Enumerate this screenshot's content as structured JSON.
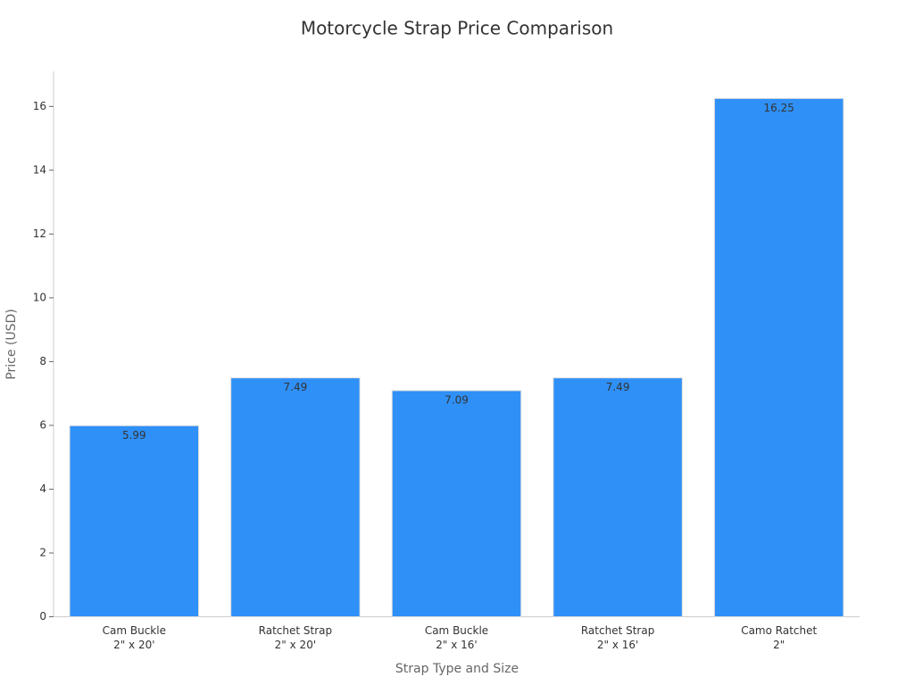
{
  "chart_data": {
    "type": "bar",
    "title": "Motorcycle Strap Price Comparison",
    "x_label": "Strap Type and Size",
    "y_label": "Price (USD)",
    "categories": [
      [
        "Cam Buckle",
        "2\" x 20'"
      ],
      [
        "Ratchet Strap",
        "2\" x 20'"
      ],
      [
        "Cam Buckle",
        "2\" x 16'"
      ],
      [
        "Ratchet Strap",
        "2\" x 16'"
      ],
      [
        "Camo Ratchet",
        "2\""
      ]
    ],
    "values": [
      5.99,
      7.49,
      7.09,
      7.49,
      16.25
    ],
    "color": "#2f90f7",
    "ylim": [
      0,
      17.1
    ],
    "yticks": [
      0,
      2,
      4,
      6,
      8,
      10,
      12,
      14,
      16
    ],
    "grid": false
  }
}
